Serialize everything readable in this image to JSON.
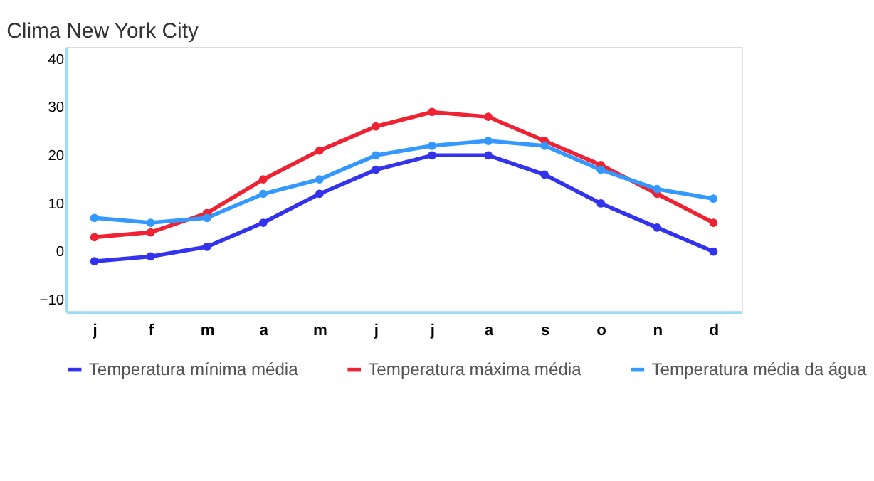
{
  "chart_data": {
    "type": "line",
    "title": "Clima New York City",
    "categories": [
      "j",
      "f",
      "m",
      "a",
      "m",
      "j",
      "j",
      "a",
      "s",
      "o",
      "n",
      "d"
    ],
    "series": [
      {
        "name": "Temperatura mínima média",
        "color": "#3333ee",
        "values": [
          -2,
          -1,
          1,
          6,
          12,
          17,
          20,
          20,
          16,
          10,
          5,
          0
        ]
      },
      {
        "name": "Temperatura máxima média",
        "color": "#ee2233",
        "values": [
          3,
          4,
          8,
          15,
          21,
          26,
          29,
          28,
          23,
          18,
          12,
          6
        ]
      },
      {
        "name": "Temperatura média da água",
        "color": "#3399ff",
        "values": [
          7,
          6,
          7,
          12,
          15,
          20,
          22,
          23,
          22,
          17,
          13,
          11
        ]
      }
    ],
    "ylim": [
      -12.5,
      42.5
    ],
    "yticks": [
      -10,
      0,
      10,
      20,
      30,
      40
    ],
    "grid": true,
    "legend": "bottom",
    "marker": "circle",
    "line_style": "solid"
  }
}
